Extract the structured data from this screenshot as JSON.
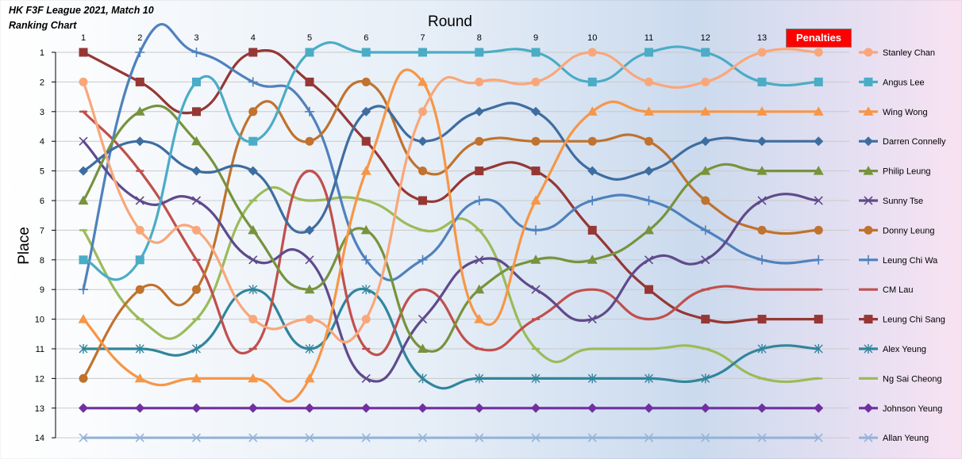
{
  "titles": {
    "line1": "HK F3F League 2021, Match 10",
    "line2": "Ranking Chart"
  },
  "penalties_label": "Penalties",
  "chart_data": {
    "type": "line",
    "xlabel": "Round",
    "ylabel": "Place",
    "x": [
      "1",
      "2",
      "3",
      "4",
      "5",
      "6",
      "7",
      "8",
      "9",
      "10",
      "11",
      "12",
      "13",
      ""
    ],
    "yticks": [
      1,
      2,
      3,
      4,
      5,
      6,
      7,
      8,
      9,
      10,
      11,
      12,
      13,
      14
    ],
    "ylim": [
      1,
      14
    ],
    "y_inverted": true,
    "grid": "horizontal",
    "legend": "right",
    "background": "gradient: light blue to pink",
    "series": [
      {
        "name": "Stanley Chan",
        "color": "#f9a77a",
        "marker": "circle",
        "values": [
          2,
          7,
          7,
          10,
          10,
          10,
          3,
          2,
          2,
          1,
          2,
          2,
          1,
          1
        ]
      },
      {
        "name": "Angus Lee",
        "color": "#4bacc6",
        "marker": "square",
        "values": [
          8,
          8,
          2,
          4,
          1,
          1,
          1,
          1,
          1,
          2,
          1,
          1,
          2,
          2
        ]
      },
      {
        "name": "Wing Wong",
        "color": "#f79646",
        "marker": "triangle",
        "values": [
          10,
          12,
          12,
          12,
          12,
          5,
          2,
          10,
          6,
          3,
          3,
          3,
          3,
          3
        ]
      },
      {
        "name": "Darren Connelly",
        "color": "#3e6da0",
        "marker": "diamond",
        "values": [
          5,
          4,
          5,
          5,
          7,
          3,
          4,
          3,
          3,
          5,
          5,
          4,
          4,
          4
        ]
      },
      {
        "name": "Philip Leung",
        "color": "#77933c",
        "marker": "triangle",
        "values": [
          6,
          3,
          4,
          7,
          9,
          7,
          11,
          9,
          8,
          8,
          7,
          5,
          5,
          5
        ]
      },
      {
        "name": "Sunny Tse",
        "color": "#5f4a8b",
        "marker": "x",
        "values": [
          4,
          6,
          6,
          8,
          8,
          12,
          10,
          8,
          9,
          10,
          8,
          8,
          6,
          6
        ]
      },
      {
        "name": "Donny Leung",
        "color": "#c0722e",
        "marker": "circle",
        "values": [
          12,
          9,
          9,
          3,
          4,
          2,
          5,
          4,
          4,
          4,
          4,
          6,
          7,
          7
        ]
      },
      {
        "name": "Leung Chi Wa",
        "color": "#4f81bd",
        "marker": "plus",
        "values": [
          9,
          1,
          1,
          2,
          3,
          8,
          8,
          6,
          7,
          6,
          6,
          7,
          8,
          8
        ]
      },
      {
        "name": "CM Lau",
        "color": "#c0504d",
        "marker": "dash",
        "values": [
          3,
          5,
          8,
          11,
          5,
          11,
          9,
          11,
          10,
          9,
          10,
          9,
          9,
          9
        ]
      },
      {
        "name": "Leung Chi Sang",
        "color": "#953735",
        "marker": "square",
        "values": [
          1,
          2,
          3,
          1,
          2,
          4,
          6,
          5,
          5,
          7,
          9,
          10,
          10,
          10
        ]
      },
      {
        "name": "Alex Yeung",
        "color": "#31859c",
        "marker": "star",
        "values": [
          11,
          11,
          11,
          9,
          11,
          9,
          12,
          12,
          12,
          12,
          12,
          12,
          11,
          11
        ]
      },
      {
        "name": "Ng Sai Cheong",
        "color": "#9bbb59",
        "marker": "dash",
        "values": [
          7,
          10,
          10,
          6,
          6,
          6,
          7,
          7,
          11,
          11,
          11,
          11,
          12,
          12
        ]
      },
      {
        "name": "Johnson Yeung",
        "color": "#7030a0",
        "marker": "diamond",
        "values": [
          13,
          13,
          13,
          13,
          13,
          13,
          13,
          13,
          13,
          13,
          13,
          13,
          13,
          13
        ]
      },
      {
        "name": "Allan Yeung",
        "color": "#95b3d7",
        "marker": "x",
        "values": [
          14,
          14,
          14,
          14,
          14,
          14,
          14,
          14,
          14,
          14,
          14,
          14,
          14,
          14
        ]
      }
    ]
  }
}
